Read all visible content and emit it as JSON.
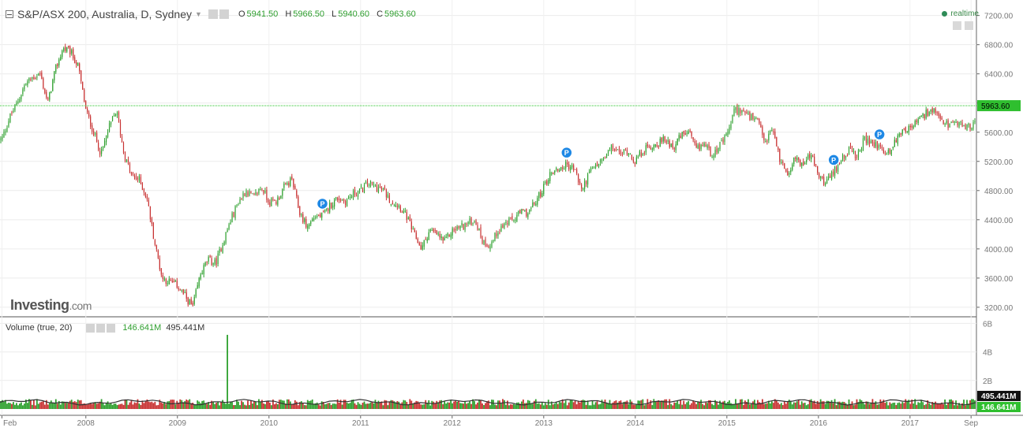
{
  "header": {
    "title": "S&P/ASX 200, Australia, D, Sydney",
    "open_label": "O",
    "open_value": "5941.50",
    "high_label": "H",
    "high_value": "5966.50",
    "low_label": "L",
    "low_value": "5940.60",
    "close_label": "C",
    "close_value": "5963.60",
    "realtime": "realtime"
  },
  "volume_header": {
    "label": "Volume (true, 20)",
    "volume_value": "146.641M",
    "ma_value": "495.441M"
  },
  "logo": {
    "main": "Investing",
    "suffix": ".com"
  },
  "icons": [
    "collapse-icon",
    "settings-icon",
    "eye-icon",
    "close-icon",
    "realtime-dot-icon",
    "arrow-up-icon",
    "arrow-down-icon"
  ],
  "colors": {
    "up": "#2ea02e",
    "down": "#c83232",
    "price_line": "#22c022",
    "marker": "#1e88e5",
    "ma_line": "#333333"
  },
  "chart_data": [
    {
      "type": "candlestick",
      "title": "S&P/ASX 200, Australia, D, Sydney",
      "x_ticks": [
        "Feb",
        "2008",
        "2009",
        "2010",
        "2011",
        "2012",
        "2013",
        "2014",
        "2015",
        "2016",
        "2017",
        "Sep"
      ],
      "y_ticks": [
        "7200.00",
        "6800.00",
        "6400.00",
        "6000.00",
        "5600.00",
        "5200.00",
        "4800.00",
        "4400.00",
        "4000.00",
        "3600.00",
        "3200.00"
      ],
      "ylim": [
        3000,
        7200
      ],
      "current_price": 5963.6,
      "current_price_label": "5963.60",
      "close_series": [
        {
          "t": "2007-02",
          "v": 5500
        },
        {
          "t": "2007-03",
          "v": 5800
        },
        {
          "t": "2007-04",
          "v": 6000
        },
        {
          "t": "2007-05",
          "v": 6250
        },
        {
          "t": "2007-06",
          "v": 6350
        },
        {
          "t": "2007-07",
          "v": 6400
        },
        {
          "t": "2007-08",
          "v": 6000
        },
        {
          "t": "2007-09",
          "v": 6450
        },
        {
          "t": "2007-10",
          "v": 6750
        },
        {
          "t": "2007-11",
          "v": 6700
        },
        {
          "t": "2007-12",
          "v": 6500
        },
        {
          "t": "2008-01",
          "v": 5900
        },
        {
          "t": "2008-02",
          "v": 5600
        },
        {
          "t": "2008-03",
          "v": 5300
        },
        {
          "t": "2008-04",
          "v": 5650
        },
        {
          "t": "2008-05",
          "v": 5900
        },
        {
          "t": "2008-06",
          "v": 5300
        },
        {
          "t": "2008-07",
          "v": 5000
        },
        {
          "t": "2008-08",
          "v": 4950
        },
        {
          "t": "2008-09",
          "v": 4700
        },
        {
          "t": "2008-10",
          "v": 4100
        },
        {
          "t": "2008-11",
          "v": 3600
        },
        {
          "t": "2008-12",
          "v": 3550
        },
        {
          "t": "2009-01",
          "v": 3500
        },
        {
          "t": "2009-02",
          "v": 3350
        },
        {
          "t": "2009-03",
          "v": 3200
        },
        {
          "t": "2009-04",
          "v": 3650
        },
        {
          "t": "2009-05",
          "v": 3850
        },
        {
          "t": "2009-06",
          "v": 3800
        },
        {
          "t": "2009-07",
          "v": 4100
        },
        {
          "t": "2009-08",
          "v": 4400
        },
        {
          "t": "2009-09",
          "v": 4650
        },
        {
          "t": "2009-10",
          "v": 4800
        },
        {
          "t": "2009-11",
          "v": 4700
        },
        {
          "t": "2009-12",
          "v": 4850
        },
        {
          "t": "2010-01",
          "v": 4650
        },
        {
          "t": "2010-02",
          "v": 4650
        },
        {
          "t": "2010-03",
          "v": 4850
        },
        {
          "t": "2010-04",
          "v": 4950
        },
        {
          "t": "2010-05",
          "v": 4500
        },
        {
          "t": "2010-06",
          "v": 4300
        },
        {
          "t": "2010-07",
          "v": 4450
        },
        {
          "t": "2010-08",
          "v": 4450
        },
        {
          "t": "2010-09",
          "v": 4600
        },
        {
          "t": "2010-10",
          "v": 4700
        },
        {
          "t": "2010-11",
          "v": 4650
        },
        {
          "t": "2010-12",
          "v": 4750
        },
        {
          "t": "2011-01",
          "v": 4800
        },
        {
          "t": "2011-02",
          "v": 4900
        },
        {
          "t": "2011-03",
          "v": 4850
        },
        {
          "t": "2011-04",
          "v": 4800
        },
        {
          "t": "2011-05",
          "v": 4650
        },
        {
          "t": "2011-06",
          "v": 4600
        },
        {
          "t": "2011-07",
          "v": 4450
        },
        {
          "t": "2011-08",
          "v": 4200
        },
        {
          "t": "2011-09",
          "v": 4000
        },
        {
          "t": "2011-10",
          "v": 4250
        },
        {
          "t": "2011-11",
          "v": 4200
        },
        {
          "t": "2011-12",
          "v": 4100
        },
        {
          "t": "2012-01",
          "v": 4250
        },
        {
          "t": "2012-02",
          "v": 4300
        },
        {
          "t": "2012-03",
          "v": 4350
        },
        {
          "t": "2012-04",
          "v": 4400
        },
        {
          "t": "2012-05",
          "v": 4100
        },
        {
          "t": "2012-06",
          "v": 4050
        },
        {
          "t": "2012-07",
          "v": 4250
        },
        {
          "t": "2012-08",
          "v": 4350
        },
        {
          "t": "2012-09",
          "v": 4400
        },
        {
          "t": "2012-10",
          "v": 4500
        },
        {
          "t": "2012-11",
          "v": 4500
        },
        {
          "t": "2012-12",
          "v": 4650
        },
        {
          "t": "2013-01",
          "v": 4850
        },
        {
          "t": "2013-02",
          "v": 5050
        },
        {
          "t": "2013-03",
          "v": 5100
        },
        {
          "t": "2013-04",
          "v": 5150
        },
        {
          "t": "2013-05",
          "v": 5100
        },
        {
          "t": "2013-06",
          "v": 4800
        },
        {
          "t": "2013-07",
          "v": 5050
        },
        {
          "t": "2013-08",
          "v": 5150
        },
        {
          "t": "2013-09",
          "v": 5250
        },
        {
          "t": "2013-10",
          "v": 5400
        },
        {
          "t": "2013-11",
          "v": 5300
        },
        {
          "t": "2013-12",
          "v": 5350
        },
        {
          "t": "2014-01",
          "v": 5200
        },
        {
          "t": "2014-02",
          "v": 5350
        },
        {
          "t": "2014-03",
          "v": 5400
        },
        {
          "t": "2014-04",
          "v": 5450
        },
        {
          "t": "2014-05",
          "v": 5500
        },
        {
          "t": "2014-06",
          "v": 5400
        },
        {
          "t": "2014-07",
          "v": 5550
        },
        {
          "t": "2014-08",
          "v": 5600
        },
        {
          "t": "2014-09",
          "v": 5350
        },
        {
          "t": "2014-10",
          "v": 5450
        },
        {
          "t": "2014-11",
          "v": 5300
        },
        {
          "t": "2014-12",
          "v": 5400
        },
        {
          "t": "2015-01",
          "v": 5550
        },
        {
          "t": "2015-02",
          "v": 5900
        },
        {
          "t": "2015-03",
          "v": 5900
        },
        {
          "t": "2015-04",
          "v": 5800
        },
        {
          "t": "2015-05",
          "v": 5750
        },
        {
          "t": "2015-06",
          "v": 5450
        },
        {
          "t": "2015-07",
          "v": 5650
        },
        {
          "t": "2015-08",
          "v": 5200
        },
        {
          "t": "2015-09",
          "v": 5050
        },
        {
          "t": "2015-10",
          "v": 5250
        },
        {
          "t": "2015-11",
          "v": 5150
        },
        {
          "t": "2015-12",
          "v": 5300
        },
        {
          "t": "2016-01",
          "v": 5000
        },
        {
          "t": "2016-02",
          "v": 4900
        },
        {
          "t": "2016-03",
          "v": 5050
        },
        {
          "t": "2016-04",
          "v": 5250
        },
        {
          "t": "2016-05",
          "v": 5350
        },
        {
          "t": "2016-06",
          "v": 5250
        },
        {
          "t": "2016-07",
          "v": 5500
        },
        {
          "t": "2016-08",
          "v": 5450
        },
        {
          "t": "2016-09",
          "v": 5400
        },
        {
          "t": "2016-10",
          "v": 5300
        },
        {
          "t": "2016-11",
          "v": 5450
        },
        {
          "t": "2016-12",
          "v": 5650
        },
        {
          "t": "2017-01",
          "v": 5650
        },
        {
          "t": "2017-02",
          "v": 5750
        },
        {
          "t": "2017-03",
          "v": 5850
        },
        {
          "t": "2017-04",
          "v": 5900
        },
        {
          "t": "2017-05",
          "v": 5750
        },
        {
          "t": "2017-06",
          "v": 5700
        },
        {
          "t": "2017-07",
          "v": 5700
        },
        {
          "t": "2017-08",
          "v": 5700
        },
        {
          "t": "2017-09",
          "v": 5650
        },
        {
          "t": "2017-10",
          "v": 5920
        }
      ],
      "markers": [
        {
          "t": "2010-08",
          "label": "P"
        },
        {
          "t": "2013-04",
          "label": "P"
        },
        {
          "t": "2016-03",
          "label": "P"
        },
        {
          "t": "2016-09",
          "label": "P"
        }
      ]
    },
    {
      "type": "bar",
      "title": "Volume (true, 20)",
      "y_ticks": [
        "6B",
        "4B",
        "2B"
      ],
      "ylim": [
        0,
        6
      ],
      "unit": "B",
      "typical_volume": 0.5,
      "peak_volume": 5.2,
      "peak_t": "2009-07",
      "volume_label": "146.641M",
      "ma_label": "495.441M"
    }
  ]
}
